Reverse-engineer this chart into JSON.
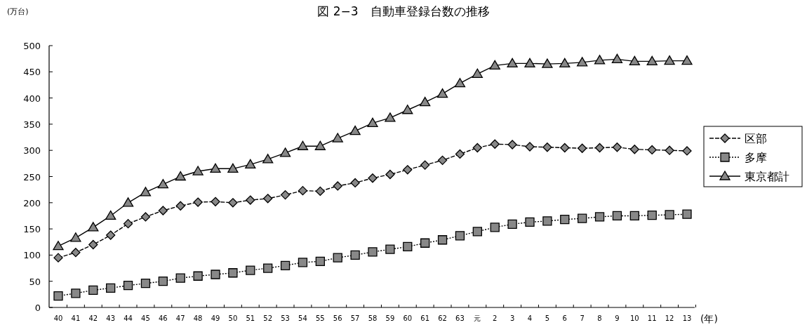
{
  "chart_data": {
    "type": "line",
    "title": "図 2−3　自動車登録台数の推移",
    "ylabel": "(万台)",
    "xlabel": "(年)",
    "categories": [
      "40",
      "41",
      "42",
      "43",
      "44",
      "45",
      "46",
      "47",
      "48",
      "49",
      "50",
      "51",
      "52",
      "53",
      "54",
      "55",
      "56",
      "57",
      "58",
      "59",
      "60",
      "61",
      "62",
      "63",
      "元",
      "2",
      "3",
      "4",
      "5",
      "6",
      "7",
      "8",
      "9",
      "10",
      "11",
      "12",
      "13"
    ],
    "series": [
      {
        "name": "区部",
        "color": "#000000",
        "marker": "diamond",
        "line_style": "dashed",
        "values": [
          95,
          105,
          120,
          138,
          160,
          173,
          185,
          194,
          201,
          202,
          200,
          205,
          208,
          215,
          223,
          222,
          232,
          238,
          247,
          254,
          263,
          272,
          281,
          293,
          305,
          312,
          311,
          307,
          306,
          305,
          304,
          305,
          306,
          302,
          301,
          300,
          299
        ]
      },
      {
        "name": "多摩",
        "color": "#000000",
        "marker": "square",
        "line_style": "dotted",
        "values": [
          22,
          27,
          33,
          37,
          42,
          46,
          50,
          56,
          60,
          63,
          66,
          71,
          75,
          80,
          86,
          88,
          95,
          100,
          106,
          111,
          116,
          123,
          129,
          137,
          145,
          153,
          159,
          163,
          165,
          168,
          170,
          173,
          175,
          175,
          176,
          177,
          178
        ]
      },
      {
        "name": "東京都計",
        "color": "#000000",
        "marker": "triangle",
        "line_style": "solid",
        "values": [
          117,
          133,
          153,
          175,
          200,
          220,
          235,
          250,
          260,
          265,
          265,
          273,
          283,
          295,
          308,
          308,
          323,
          337,
          352,
          362,
          377,
          392,
          408,
          428,
          446,
          462,
          466,
          466,
          465,
          466,
          468,
          472,
          474,
          470,
          470,
          471,
          471
        ]
      }
    ],
    "ylim": [
      0,
      500
    ],
    "yticks": [
      0,
      50,
      100,
      150,
      200,
      250,
      300,
      350,
      400,
      450,
      500
    ],
    "grid": false,
    "legend": "right"
  }
}
